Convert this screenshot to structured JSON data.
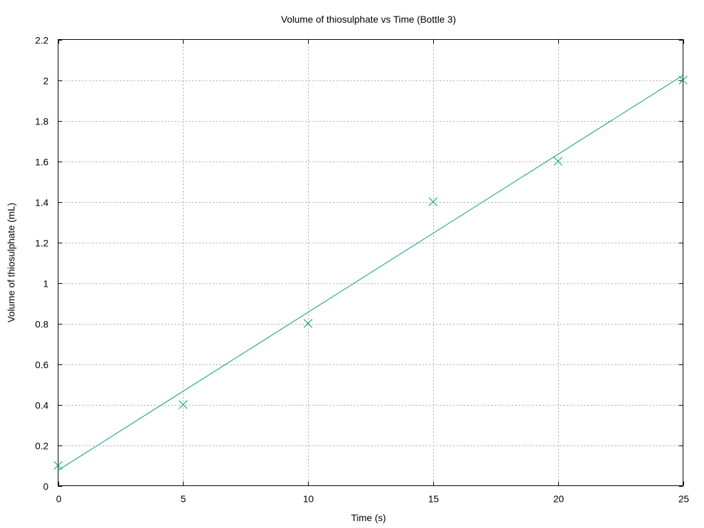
{
  "chart_data": {
    "type": "scatter",
    "title": "Volume of thiosulphate vs Time (Bottle 3)",
    "xlabel": "Time (s)",
    "ylabel": "Volume of thiosulphate (mL)",
    "xlim": [
      0,
      25
    ],
    "ylim": [
      0,
      2.2
    ],
    "xticks": [
      0,
      5,
      10,
      15,
      20,
      25
    ],
    "yticks": [
      0,
      0.2,
      0.4,
      0.6,
      0.8,
      1,
      1.2,
      1.4,
      1.6,
      1.8,
      2,
      2.2
    ],
    "xtick_labels": [
      "0",
      "5",
      "10",
      "15",
      "20",
      "25"
    ],
    "ytick_labels": [
      "0",
      "0.2",
      "0.4",
      "0.6",
      "0.8",
      "1",
      "1.2",
      "1.4",
      "1.6",
      "1.8",
      "2",
      "2.2"
    ],
    "grid": true,
    "legend": "none",
    "series": [
      {
        "kind": "points",
        "marker": "x",
        "color": "#009e73",
        "x": [
          0,
          5,
          10,
          15,
          20,
          25
        ],
        "y": [
          0.1,
          0.4,
          0.8,
          1.4,
          1.6,
          2.0
        ]
      },
      {
        "kind": "fit-line",
        "color": "#009e73",
        "x": [
          0,
          25
        ],
        "y": [
          0.0762,
          2.0238
        ]
      }
    ]
  }
}
